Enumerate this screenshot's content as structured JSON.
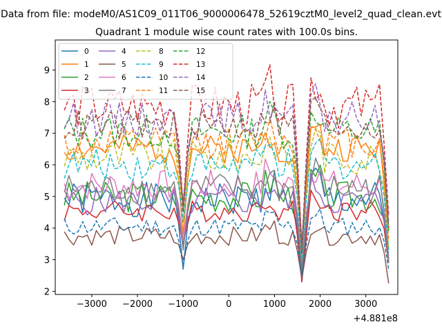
{
  "chart_data": {
    "type": "line",
    "suptitle": "Data from file: modeM0/AS1C09_011T06_9000006478_52619cztM0_level2_quad_clean.evt",
    "title": "Quadrant 1 module wise count rates with 100.0s bins.",
    "xlabel": "",
    "ylabel": "",
    "x_offset_label": "+4.881e8",
    "xlim": [
      -3800,
      3700
    ],
    "ylim": [
      1.9,
      9.95
    ],
    "xticks": [
      -3000,
      -2000,
      -1000,
      0,
      1000,
      2000,
      3000
    ],
    "xtick_labels": [
      "−3000",
      "−2000",
      "−1000",
      "0",
      "1000",
      "2000",
      "3000"
    ],
    "yticks": [
      2,
      3,
      4,
      5,
      6,
      7,
      8,
      9
    ],
    "ytick_labels": [
      "2",
      "3",
      "4",
      "5",
      "6",
      "7",
      "8",
      "9"
    ],
    "legend_position": "top-left",
    "legend_columns": 4,
    "x_range": [
      -3600,
      3500
    ],
    "x_step": 100,
    "features": [
      -1000,
      1600,
      3500
    ],
    "series": [
      {
        "name": "0",
        "color": "#1f77b4",
        "dash": false,
        "base": 4.9,
        "amp": 0.55,
        "dips": [
          2.7,
          2.3,
          2.9
        ]
      },
      {
        "name": "1",
        "color": "#ff7f0e",
        "dash": false,
        "base": 6.5,
        "amp": 0.45,
        "dips": [
          3.8,
          3.1,
          3.3
        ]
      },
      {
        "name": "2",
        "color": "#2ca02c",
        "dash": false,
        "base": 5.0,
        "amp": 0.5,
        "dips": [
          3.6,
          2.6,
          3.0
        ]
      },
      {
        "name": "3",
        "color": "#d62728",
        "dash": false,
        "base": 4.55,
        "amp": 0.35,
        "dips": [
          3.5,
          2.3,
          2.9
        ]
      },
      {
        "name": "4",
        "color": "#9467bd",
        "dash": false,
        "base": 4.85,
        "amp": 0.45,
        "dips": [
          3.4,
          2.7,
          3.0
        ]
      },
      {
        "name": "5",
        "color": "#8c564b",
        "dash": false,
        "base": 3.75,
        "amp": 0.3,
        "dips": [
          3.0,
          2.4,
          2.25
        ]
      },
      {
        "name": "6",
        "color": "#e377c2",
        "dash": false,
        "base": 5.35,
        "amp": 0.5,
        "dips": [
          3.6,
          2.8,
          3.1
        ]
      },
      {
        "name": "7",
        "color": "#7f7f7f",
        "dash": false,
        "base": 5.25,
        "amp": 0.5,
        "dips": [
          3.3,
          2.7,
          2.9
        ]
      },
      {
        "name": "8",
        "color": "#bcbd22",
        "dash": true,
        "base": 6.25,
        "amp": 0.55,
        "dips": [
          4.4,
          3.1,
          3.3
        ]
      },
      {
        "name": "9",
        "color": "#17becf",
        "dash": true,
        "base": 6.0,
        "amp": 0.5,
        "dips": [
          4.2,
          3.0,
          3.2
        ]
      },
      {
        "name": "10",
        "color": "#1f77b4",
        "dash": true,
        "base": 4.05,
        "amp": 0.3,
        "dips": [
          2.8,
          2.5,
          2.7
        ]
      },
      {
        "name": "11",
        "color": "#ff7f0e",
        "dash": true,
        "base": 6.7,
        "amp": 0.5,
        "dips": [
          4.6,
          3.3,
          3.6
        ]
      },
      {
        "name": "12",
        "color": "#2ca02c",
        "dash": true,
        "base": 7.05,
        "amp": 0.55,
        "dips": [
          4.8,
          3.5,
          3.9
        ]
      },
      {
        "name": "13",
        "color": "#d62728",
        "dash": true,
        "base": 7.85,
        "amp": 0.7,
        "dips": [
          4.7,
          3.4,
          4.4
        ]
      },
      {
        "name": "14",
        "color": "#9467bd",
        "dash": true,
        "base": 7.45,
        "amp": 0.55,
        "dips": [
          4.6,
          3.3,
          4.2
        ]
      },
      {
        "name": "15",
        "color": "#8c564b",
        "dash": true,
        "base": 7.25,
        "amp": 0.5,
        "dips": [
          4.5,
          3.2,
          4.0
        ]
      }
    ]
  }
}
